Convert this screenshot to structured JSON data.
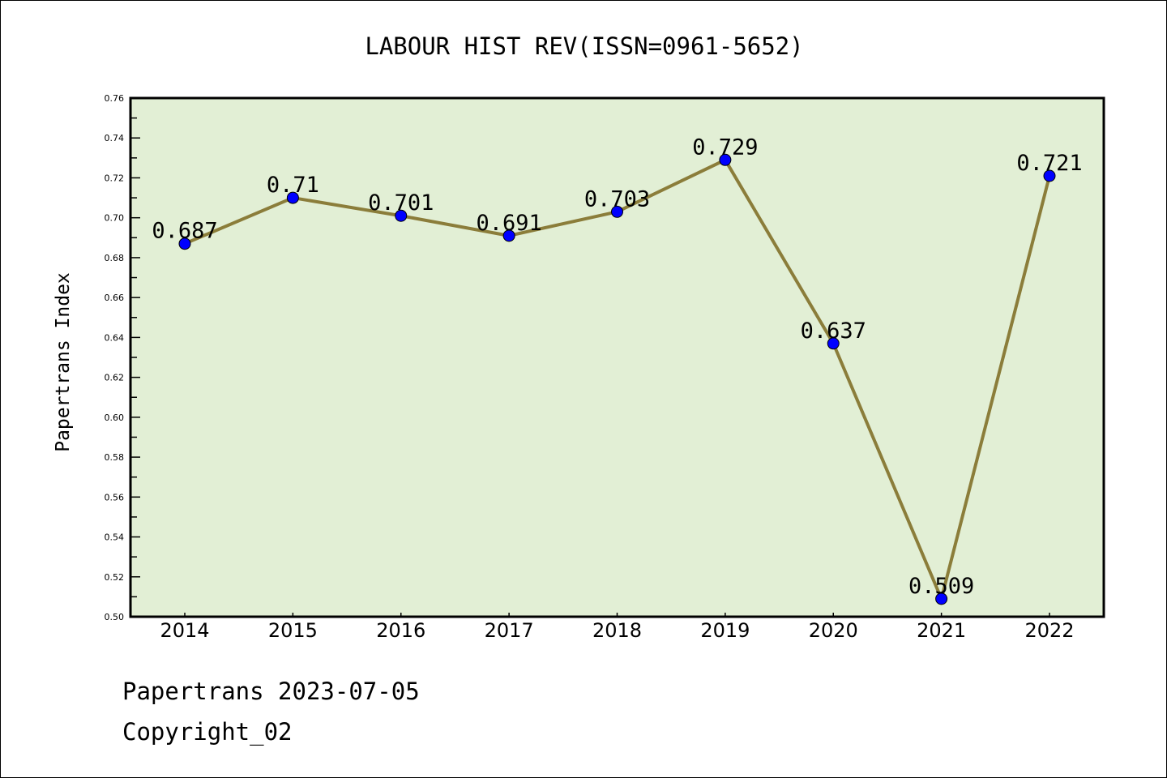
{
  "chart_data": {
    "type": "line",
    "title": "LABOUR HIST REV(ISSN=0961-5652)",
    "xlabel": "",
    "ylabel": "Papertrans Index",
    "categories": [
      "2014",
      "2015",
      "2016",
      "2017",
      "2018",
      "2019",
      "2020",
      "2021",
      "2022"
    ],
    "values": [
      0.687,
      0.71,
      0.701,
      0.691,
      0.703,
      0.729,
      0.637,
      0.509,
      0.721
    ],
    "data_labels": [
      "0.687",
      "0.71",
      "0.701",
      "0.691",
      "0.703",
      "0.729",
      "0.637",
      "0.509",
      "0.721"
    ],
    "ylim": [
      0.5,
      0.76
    ],
    "yticks": [
      "0.50",
      "0.52",
      "0.54",
      "0.56",
      "0.58",
      "0.60",
      "0.62",
      "0.64",
      "0.66",
      "0.68",
      "0.70",
      "0.72",
      "0.74",
      "0.76"
    ],
    "grid": false,
    "colors": {
      "line": "#8b7d3a",
      "marker": "#0000ff",
      "plot_bg": "#e2efd5"
    }
  },
  "footer": {
    "line1": "Papertrans 2023-07-05",
    "line2": "Copyright_02"
  }
}
